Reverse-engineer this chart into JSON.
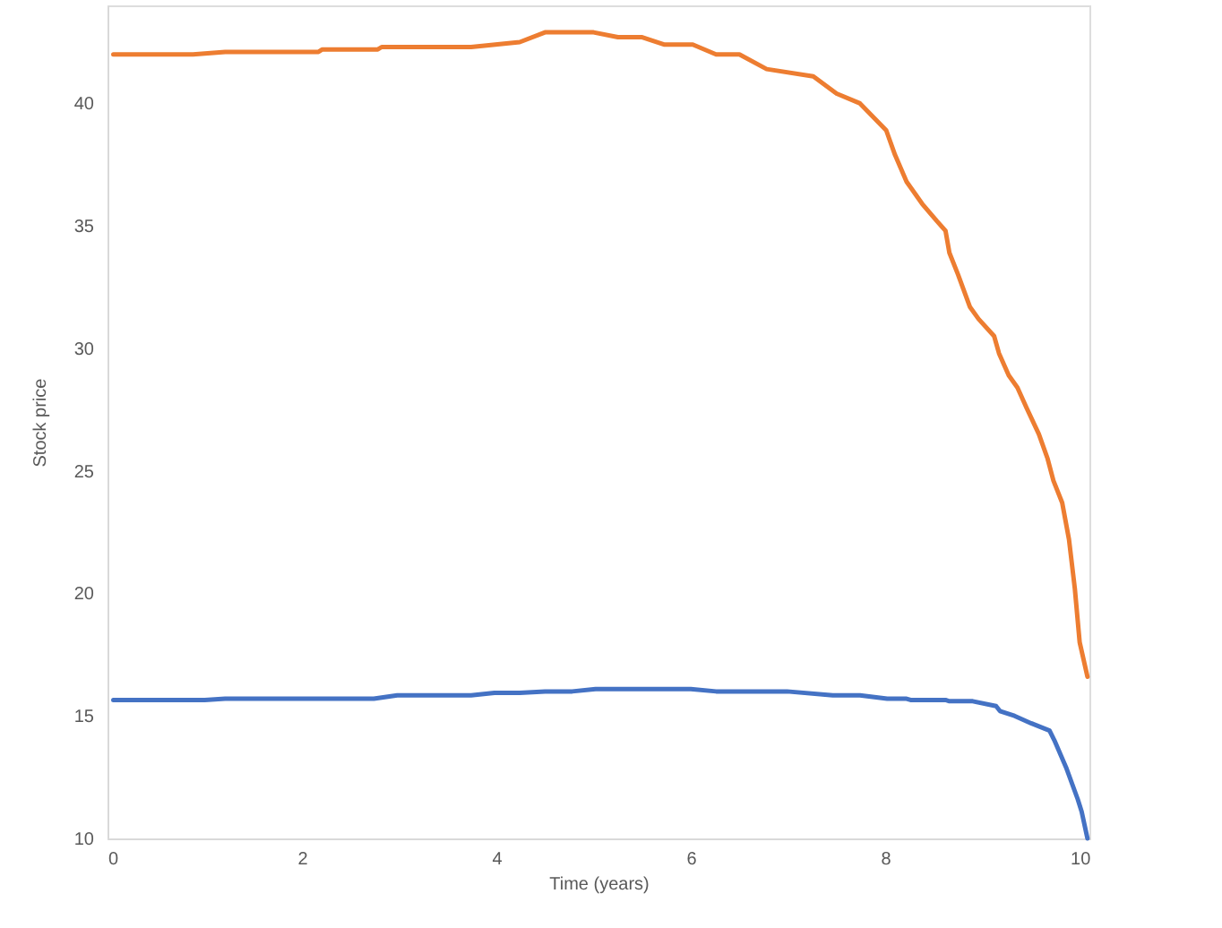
{
  "chart_data": {
    "type": "line",
    "xlabel": "Time (years)",
    "ylabel": "Stock price",
    "xlim": [
      0,
      10.1
    ],
    "xticks": [
      0,
      2,
      4,
      6,
      8,
      10
    ],
    "ylim": [
      10,
      44
    ],
    "yticks": [
      10,
      15,
      20,
      25,
      30,
      35,
      40
    ],
    "grid": false,
    "marker": "none",
    "line_style": "solid",
    "series": [
      {
        "color": "#ed7d31",
        "x": [
          0.06,
          0.88,
          1.21,
          2.17,
          2.21,
          2.78,
          2.82,
          3.74,
          4.24,
          4.5,
          5.0,
          5.25,
          5.5,
          5.73,
          6.02,
          6.26,
          6.5,
          6.78,
          7.26,
          7.5,
          7.74,
          8.01,
          8.1,
          8.22,
          8.38,
          8.53,
          8.62,
          8.66,
          8.75,
          8.87,
          8.96,
          9.12,
          9.17,
          9.27,
          9.36,
          9.45,
          9.58,
          9.67,
          9.73,
          9.82,
          9.89,
          9.95,
          10.0,
          10.08
        ],
        "values": [
          42.0,
          42.0,
          42.1,
          42.1,
          42.2,
          42.2,
          42.3,
          42.3,
          42.5,
          42.9,
          42.9,
          42.7,
          42.7,
          42.4,
          42.4,
          42.0,
          42.0,
          41.4,
          41.1,
          40.4,
          40.0,
          38.9,
          37.9,
          36.8,
          35.9,
          35.2,
          34.8,
          33.9,
          33.0,
          31.7,
          31.2,
          30.5,
          29.8,
          28.9,
          28.4,
          27.6,
          26.5,
          25.5,
          24.6,
          23.7,
          22.2,
          20.2,
          18.0,
          16.6
        ]
      },
      {
        "color": "#4472c4",
        "x": [
          0.06,
          1.0,
          1.21,
          2.74,
          2.82,
          2.98,
          3.74,
          3.98,
          4.24,
          4.5,
          4.78,
          5.02,
          6.0,
          6.26,
          6.99,
          7.46,
          7.74,
          8.02,
          8.22,
          8.26,
          8.62,
          8.66,
          8.9,
          9.14,
          9.18,
          9.33,
          9.5,
          9.69,
          9.74,
          9.86,
          9.98,
          10.02,
          10.08
        ],
        "values": [
          15.65,
          15.65,
          15.7,
          15.7,
          15.75,
          15.84,
          15.84,
          15.94,
          15.94,
          16.0,
          16.0,
          16.1,
          16.1,
          16.0,
          16.0,
          15.84,
          15.84,
          15.7,
          15.7,
          15.65,
          15.65,
          15.6,
          15.6,
          15.4,
          15.2,
          15.0,
          14.7,
          14.4,
          14.0,
          12.9,
          11.6,
          11.1,
          10.0
        ]
      }
    ]
  }
}
